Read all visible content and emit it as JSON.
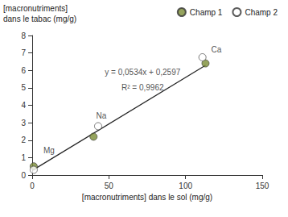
{
  "chart_data": {
    "type": "scatter",
    "x_label": "[macronutriments] dans le sol (mg/g)",
    "y_label": "[macronutriments]\ndans le tabac (mg/g)",
    "xlim": [
      0,
      150
    ],
    "xticks": [
      0,
      50,
      100,
      150
    ],
    "ylim": [
      0,
      8
    ],
    "yticks": [
      0,
      1,
      2,
      3,
      4,
      5,
      6,
      7,
      8
    ],
    "grid": false,
    "legend": "top-right",
    "series": [
      {
        "name": "Champ 1",
        "type": "scatter",
        "marker": "circle",
        "color": "#7b8c35",
        "x": [
          1,
          40,
          113
        ],
        "values": [
          0.5,
          2.2,
          6.4
        ]
      },
      {
        "name": "Champ 2",
        "type": "scatter",
        "marker": "circle",
        "color": "#ffffff",
        "x": [
          1,
          43,
          111
        ],
        "values": [
          0.3,
          2.8,
          6.75
        ]
      },
      {
        "type": "line",
        "color": "#222222",
        "line_style": "solid",
        "x": [
          0,
          113
        ],
        "values": [
          0.26,
          6.29
        ]
      }
    ],
    "annotations": [
      {
        "text": "y = 0,0534x + 0,2597",
        "x": 72,
        "y": 5.9
      },
      {
        "text": "R² = 0,9962",
        "x": 72,
        "y": 5.0
      },
      {
        "text": "Mg",
        "x": 11,
        "y": 1.4
      },
      {
        "text": "Na",
        "x": 45,
        "y": 3.4
      },
      {
        "text": "Ca",
        "x": 120,
        "y": 7.2
      }
    ]
  }
}
